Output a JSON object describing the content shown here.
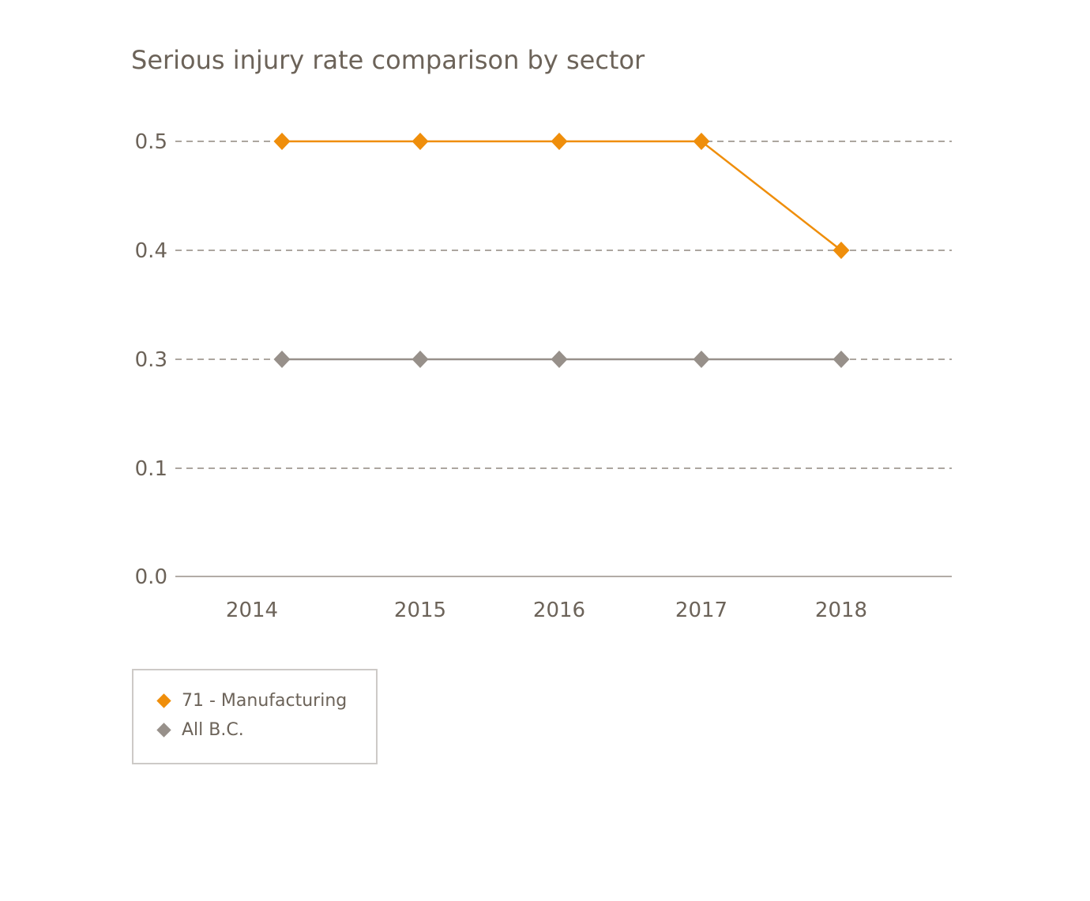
{
  "chart_data": {
    "type": "line",
    "title": "Serious injury rate comparison by sector",
    "x_labels": [
      "2014",
      "2015",
      "2016",
      "2017",
      "2018"
    ],
    "y_tick_labels": [
      "0.0",
      "0.1",
      "0.3",
      "0.4",
      "0.5"
    ],
    "ylim": [
      0.0,
      0.5
    ],
    "grid": "horizontal dashed gridlines, solid baseline at 0.0",
    "legend_position": "bottom-left",
    "marker_shape": "diamond",
    "series": [
      {
        "name": "71 - Manufacturing",
        "color": "#EF8E0B",
        "values": [
          0.5,
          0.5,
          0.5,
          0.5,
          0.4
        ]
      },
      {
        "name": "All B.C.",
        "color": "#97908A",
        "values": [
          0.3,
          0.3,
          0.3,
          0.3,
          0.3
        ]
      }
    ]
  },
  "colors": {
    "background": "#FFFFFF",
    "title_text": "#6C6359",
    "axis_text": "#6C6359",
    "gridline": "#ACA69F",
    "axis_line": "#B2ACA6",
    "legend_border": "#CDCAC7"
  }
}
